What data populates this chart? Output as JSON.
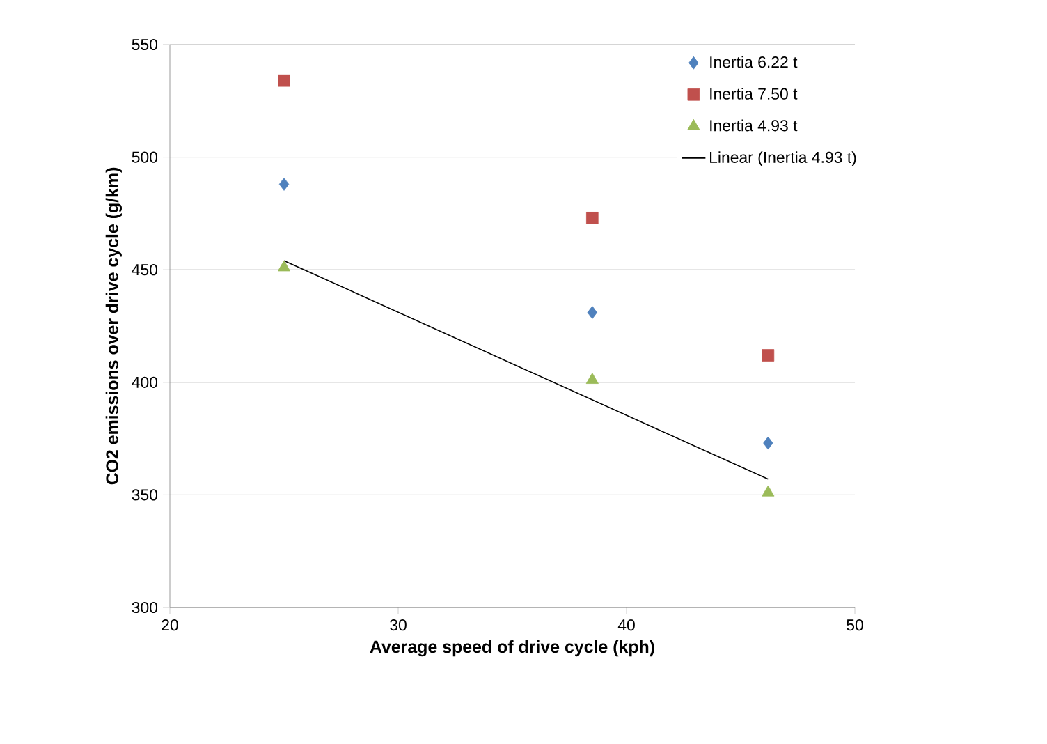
{
  "chart_data": {
    "type": "scatter",
    "xlabel": "Average speed of drive cycle (kph)",
    "ylabel": "CO2 emissions over drive cycle (g/km)",
    "xlim": [
      20,
      50
    ],
    "xticks": [
      20,
      30,
      40,
      50
    ],
    "ylim": [
      300,
      550
    ],
    "yticks": [
      300,
      350,
      400,
      450,
      500,
      550
    ],
    "grid": "y",
    "legend": "top right",
    "series": [
      {
        "name": "Inertia 6.22 t",
        "color": "#4f81bd",
        "marker": "diamond",
        "x": [
          25,
          38.5,
          46.2
        ],
        "values": [
          488,
          431,
          373
        ]
      },
      {
        "name": "Inertia 7.50 t",
        "color": "#c0504d",
        "marker": "square",
        "x": [
          25,
          38.5,
          46.2
        ],
        "values": [
          534,
          473,
          412
        ]
      },
      {
        "name": "Inertia 4.93 t",
        "color": "#9bbb59",
        "marker": "triangle",
        "x": [
          25,
          38.5,
          46.2
        ],
        "values": [
          451,
          401,
          351
        ]
      },
      {
        "name": "Linear (Inertia 4.93 t)",
        "type": "line",
        "color": "#000000",
        "marker": "none",
        "x": [
          25,
          46.2
        ],
        "values": [
          454,
          357
        ]
      }
    ]
  }
}
